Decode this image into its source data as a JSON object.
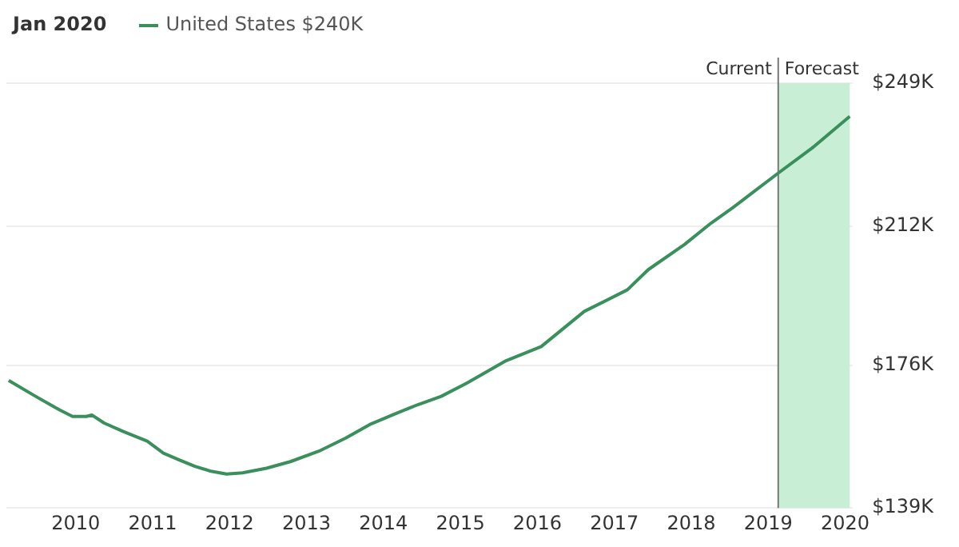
{
  "chart_data": {
    "type": "line",
    "legend_title": "Jan 2020",
    "legend": "top left",
    "grid": "y",
    "marker": "none",
    "line_style": "solid",
    "x": [
      2009.13,
      2009.48,
      2009.79,
      2009.96,
      2010.14,
      2010.21,
      2010.37,
      2010.62,
      2010.93,
      2011.14,
      2011.34,
      2011.55,
      2011.76,
      2011.96,
      2012.17,
      2012.48,
      2012.79,
      2013.16,
      2013.51,
      2013.82,
      2014.13,
      2014.44,
      2014.75,
      2015.08,
      2015.58,
      2016.05,
      2016.61,
      2017.17,
      2017.44,
      2017.91,
      2018.26,
      2018.53,
      2018.82,
      2019.13,
      2019.57,
      2020.06
    ],
    "series": [
      {
        "name": "United States $240K",
        "color": "#3a8f5c",
        "values": [
          172,
          167.9,
          164.4,
          162.7,
          162.7,
          163.1,
          161,
          158.8,
          156.3,
          153.2,
          151.5,
          149.8,
          148.5,
          147.8,
          148.1,
          149.3,
          151,
          153.7,
          157.1,
          160.6,
          163.2,
          165.7,
          167.9,
          171.3,
          177,
          180.8,
          189.9,
          195.5,
          200.7,
          207.2,
          212.8,
          216.6,
          221,
          225.7,
          232.2,
          240.4
        ]
      }
    ],
    "xlim": [
      2009.1,
      2020.1
    ],
    "xticks": [
      2010,
      2011,
      2012,
      2013,
      2014,
      2015,
      2016,
      2017,
      2018,
      2019,
      2020
    ],
    "ylim": [
      139,
      249
    ],
    "yticks": [
      {
        "value": 139,
        "label": "$139K"
      },
      {
        "value": 176,
        "label": "$176K"
      },
      {
        "value": 212,
        "label": "$212K"
      },
      {
        "value": 249,
        "label": "$249K"
      }
    ],
    "ref_lines": [
      {
        "axis": "x",
        "value": 2019.13,
        "label": "Current",
        "color": "#777777"
      }
    ],
    "bands": [
      {
        "axis": "x",
        "from": 2019.13,
        "to": 2020.06,
        "label": "Forecast",
        "color": "#c8eed5"
      }
    ]
  }
}
